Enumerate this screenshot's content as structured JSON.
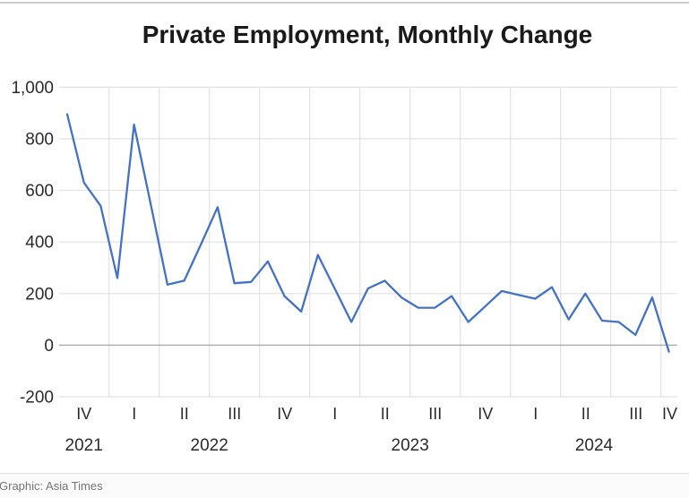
{
  "title": "Private Employment, Monthly Change",
  "footer": {
    "credit": "Graphic: Asia Times"
  },
  "colors": {
    "line": "#4472C4",
    "grid": "#e4e4e4",
    "zero_line": "#b0b0b0",
    "axis_text": "#2b2b2b",
    "top_divider": "#cccccc",
    "footer_text": "#757575",
    "footer_bg": "#fbfbfb"
  },
  "chart_data": {
    "type": "line",
    "title": "Private Employment, Monthly Change",
    "xlabel": "",
    "ylabel": "",
    "ylim": [
      -200,
      1000
    ],
    "grid": true,
    "legend": false,
    "y_ticks": [
      1000,
      800,
      600,
      400,
      200,
      0,
      -200
    ],
    "y_tick_labels": [
      "1,000",
      "800",
      "600",
      "400",
      "200",
      "0",
      "-200"
    ],
    "quarter_tick_labels": [
      "IV",
      "I",
      "II",
      "III",
      "IV",
      "I",
      "II",
      "III",
      "IV",
      "I",
      "II",
      "III",
      "IV"
    ],
    "year_labels": [
      "2021",
      "2022",
      "2023",
      "2024"
    ],
    "months": [
      "Oct 2021",
      "Nov 2021",
      "Dec 2021",
      "Jan 2022",
      "Feb 2022",
      "Mar 2022",
      "Apr 2022",
      "May 2022",
      "Jun 2022",
      "Jul 2022",
      "Aug 2022",
      "Sep 2022",
      "Oct 2022",
      "Nov 2022",
      "Dec 2022",
      "Jan 2023",
      "Feb 2023",
      "Mar 2023",
      "Apr 2023",
      "May 2023",
      "Jun 2023",
      "Jul 2023",
      "Aug 2023",
      "Sep 2023",
      "Oct 2023",
      "Nov 2023",
      "Dec 2023",
      "Jan 2024",
      "Feb 2024",
      "Mar 2024",
      "Apr 2024",
      "May 2024",
      "Jun 2024",
      "Jul 2024",
      "Aug 2024",
      "Sep 2024",
      "Oct 2024"
    ],
    "values": [
      895,
      630,
      540,
      260,
      855,
      545,
      235,
      250,
      390,
      535,
      240,
      245,
      325,
      190,
      130,
      350,
      220,
      90,
      220,
      250,
      185,
      145,
      145,
      190,
      90,
      150,
      210,
      195,
      180,
      225,
      100,
      200,
      95,
      90,
      40,
      185,
      -25
    ]
  }
}
